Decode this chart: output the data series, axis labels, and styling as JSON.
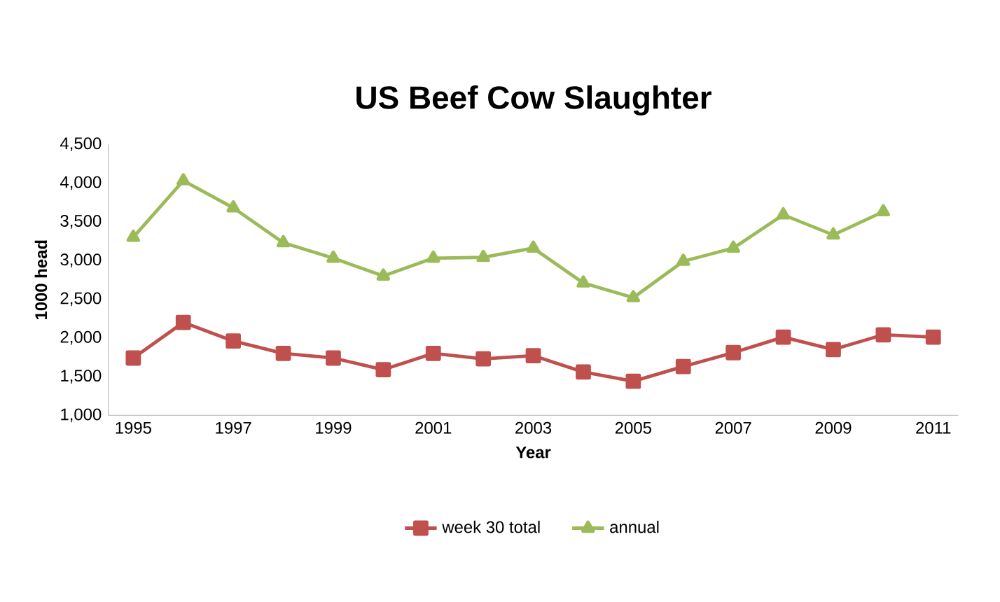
{
  "chart_data": {
    "type": "line",
    "title": "US Beef Cow Slaughter",
    "xlabel": "Year",
    "ylabel": "1000 head",
    "categories": [
      "1995",
      null,
      "1997",
      null,
      "1999",
      null,
      "2001",
      null,
      "2003",
      null,
      "2005",
      null,
      "2007",
      null,
      "2009",
      null,
      "2011"
    ],
    "series": [
      {
        "name": "week 30 total",
        "color": "#c0504d",
        "marker": "square",
        "values": [
          1740,
          2200,
          1960,
          1800,
          1740,
          1590,
          1800,
          1730,
          1770,
          1560,
          1440,
          1630,
          1810,
          2010,
          1850,
          2040,
          2010
        ]
      },
      {
        "name": "annual",
        "color": "#9bbb59",
        "marker": "triangle",
        "values": [
          3300,
          4030,
          3680,
          3230,
          3030,
          2800,
          3030,
          3040,
          3160,
          2710,
          2520,
          2990,
          3160,
          3590,
          3330,
          3630,
          null
        ]
      }
    ],
    "ylim": [
      1000,
      4500
    ],
    "yticks": [
      {
        "value": 1000,
        "label": "1,000"
      },
      {
        "value": 1500,
        "label": "1,500"
      },
      {
        "value": 2000,
        "label": "2,000"
      },
      {
        "value": 2500,
        "label": "2,500"
      },
      {
        "value": 3000,
        "label": "3,000"
      },
      {
        "value": 3500,
        "label": "3,500"
      },
      {
        "value": 4000,
        "label": "4,000"
      },
      {
        "value": 4500,
        "label": "4,500"
      }
    ],
    "grid": false,
    "legend": "bottom",
    "line_style": "solid"
  }
}
